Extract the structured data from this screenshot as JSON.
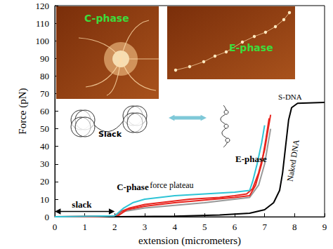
{
  "chart_data": {
    "type": "line",
    "xlabel": "extension (micrometers)",
    "ylabel": "Force (pN)",
    "xlim": [
      0,
      9
    ],
    "xticks": [
      0,
      1,
      2,
      3,
      4,
      5,
      6,
      7,
      8,
      9
    ],
    "ylim": [
      0,
      120
    ],
    "yticks": [
      0,
      10,
      20,
      30,
      40,
      50,
      60,
      70,
      80,
      90,
      100,
      110,
      120
    ],
    "grid": false,
    "series": [
      {
        "color": "#999999",
        "line_style": "solid",
        "x": [
          0,
          1,
          2,
          2.3,
          3,
          4,
          5,
          6,
          6.5,
          6.8,
          7.0,
          7.2
        ],
        "values": [
          0,
          0,
          0.5,
          3,
          5,
          6.5,
          8,
          10,
          11,
          18,
          30,
          50
        ]
      },
      {
        "color": "#e8251f",
        "line_style": "solid",
        "x": [
          0,
          1,
          2,
          2.2,
          2.5,
          3,
          3.5,
          4,
          4.5,
          5,
          5.5,
          6,
          6.4,
          6.6,
          6.8,
          7.0,
          7.1,
          7.2
        ],
        "values": [
          0,
          0,
          0.5,
          3,
          5,
          7,
          8,
          9,
          10,
          10.5,
          11,
          12,
          13,
          16,
          25,
          38,
          48,
          58
        ]
      },
      {
        "color": "#e8251f",
        "line_style": "solid",
        "x": [
          0,
          2.1,
          2.4,
          3,
          4,
          5,
          6,
          6.5,
          6.7,
          6.9,
          7.05,
          7.15
        ],
        "values": [
          0,
          0.5,
          4,
          6,
          8,
          9.5,
          11,
          12,
          18,
          30,
          45,
          56
        ]
      },
      {
        "color": "#2ec4d6",
        "line_style": "solid",
        "x": [
          0,
          2.0,
          2.3,
          2.6,
          3,
          3.5,
          4,
          5,
          6,
          6.5,
          6.6,
          6.75,
          6.9,
          7.0
        ],
        "values": [
          0,
          0.5,
          5,
          8,
          10,
          11,
          12,
          13,
          14,
          15,
          20,
          30,
          42,
          52
        ]
      },
      {
        "color": "#000000",
        "line_style": "solid",
        "x": [
          2,
          4,
          5.5,
          6.5,
          7,
          7.3,
          7.5,
          7.6,
          7.7,
          7.8,
          7.9,
          8.1,
          9
        ],
        "values": [
          0,
          0.3,
          1,
          2,
          4,
          8,
          15,
          25,
          40,
          55,
          62,
          64.5,
          65
        ]
      }
    ],
    "annotations": [
      {
        "text": "slack",
        "x": 0.9,
        "y": 7
      },
      {
        "text": "C-phase",
        "x": 2.6,
        "y": 17
      },
      {
        "text": "force plateau",
        "x": 3.9,
        "y": 18
      },
      {
        "text": "E-phase",
        "x": 6.55,
        "y": 33
      },
      {
        "text": "S-DNA",
        "x": 7.85,
        "y": 68
      },
      {
        "text": "Naked DNA",
        "x": 7.95,
        "y": 32
      }
    ],
    "slack_arrow": {
      "from": 0,
      "to": 2,
      "y": 3
    },
    "insets": [
      {
        "label": "C-phase"
      },
      {
        "label": "E-phase"
      }
    ],
    "schematic_label": "Slack"
  }
}
